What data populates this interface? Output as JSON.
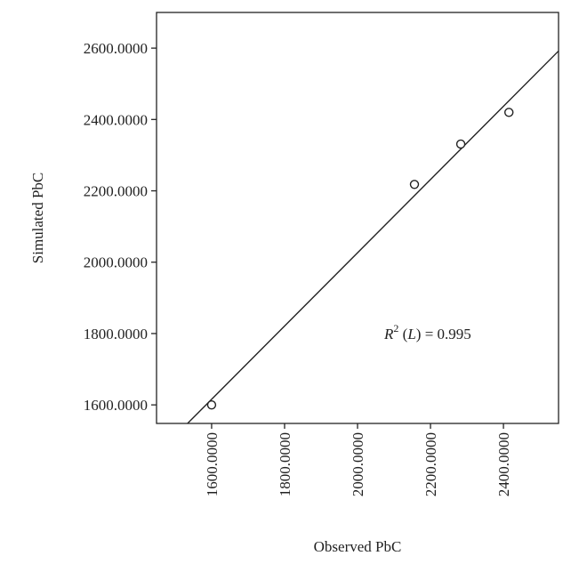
{
  "chart_data": {
    "type": "scatter",
    "x_label": "Observed PbC",
    "y_label": "Simulated PbC",
    "series": [
      {
        "x": [
          1600,
          2156,
          2283,
          2415
        ],
        "values": [
          1600,
          2218,
          2331,
          2420
        ],
        "color": "#222222"
      }
    ],
    "fit": {
      "x": [
        1534,
        2551
      ],
      "y": [
        1548,
        2592
      ],
      "color": "#222222"
    },
    "annotation": [
      "R",
      "2",
      " (",
      "L",
      ") = 0.995"
    ],
    "xlim": [
      1449,
      2551
    ],
    "ylim": [
      1548,
      2700
    ],
    "xticks": [
      {
        "value": 1600,
        "label": "1600.0000"
      },
      {
        "value": 1800,
        "label": "1800.0000"
      },
      {
        "value": 2000,
        "label": "2000.0000"
      },
      {
        "value": 2200,
        "label": "2200.0000"
      },
      {
        "value": 2400,
        "label": "2400.0000"
      }
    ],
    "yticks": [
      {
        "value": 1600,
        "label": "1600.0000"
      },
      {
        "value": 1800,
        "label": "1800.0000"
      },
      {
        "value": 2000,
        "label": "2000.0000"
      },
      {
        "value": 2200,
        "label": "2200.0000"
      },
      {
        "value": 2400,
        "label": "2400.0000"
      },
      {
        "value": 2600,
        "label": "2600.0000"
      }
    ],
    "grid": false
  }
}
